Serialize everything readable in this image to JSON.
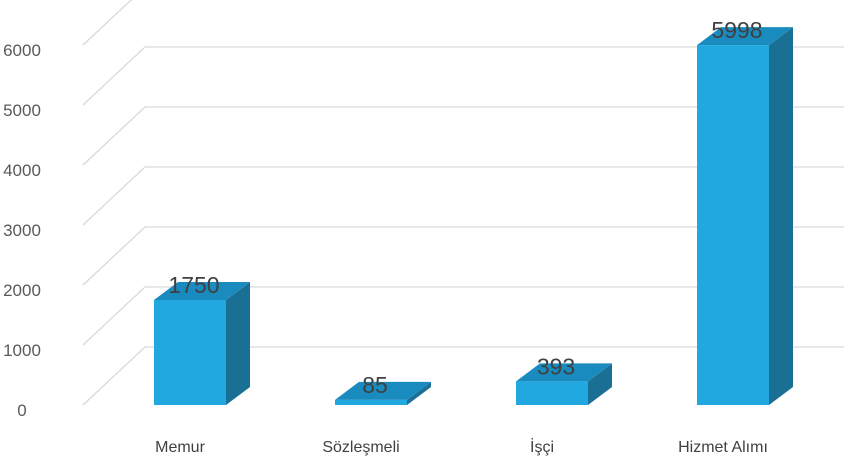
{
  "chart_data": {
    "type": "bar",
    "style": "3d-column",
    "categories": [
      "Memur",
      "Sözleşmeli",
      "İşçi",
      "Hizmet Alımı"
    ],
    "values": [
      1750,
      85,
      393,
      5998
    ],
    "data_labels": [
      "1750",
      "85",
      "393",
      "5998"
    ],
    "yticks": [
      "0",
      "1000",
      "2000",
      "3000",
      "4000",
      "5000",
      "6000"
    ],
    "ylim": [
      0,
      6000
    ],
    "grid": true,
    "legend": "none",
    "title": "",
    "xlabel": "",
    "ylabel": "",
    "colors": {
      "front": "#21A8E1",
      "top": "#1A8BBF",
      "side": "#1A6F95",
      "grid": "#D9D9D9",
      "tick_text": "#595959",
      "label_text": "#404040"
    }
  }
}
